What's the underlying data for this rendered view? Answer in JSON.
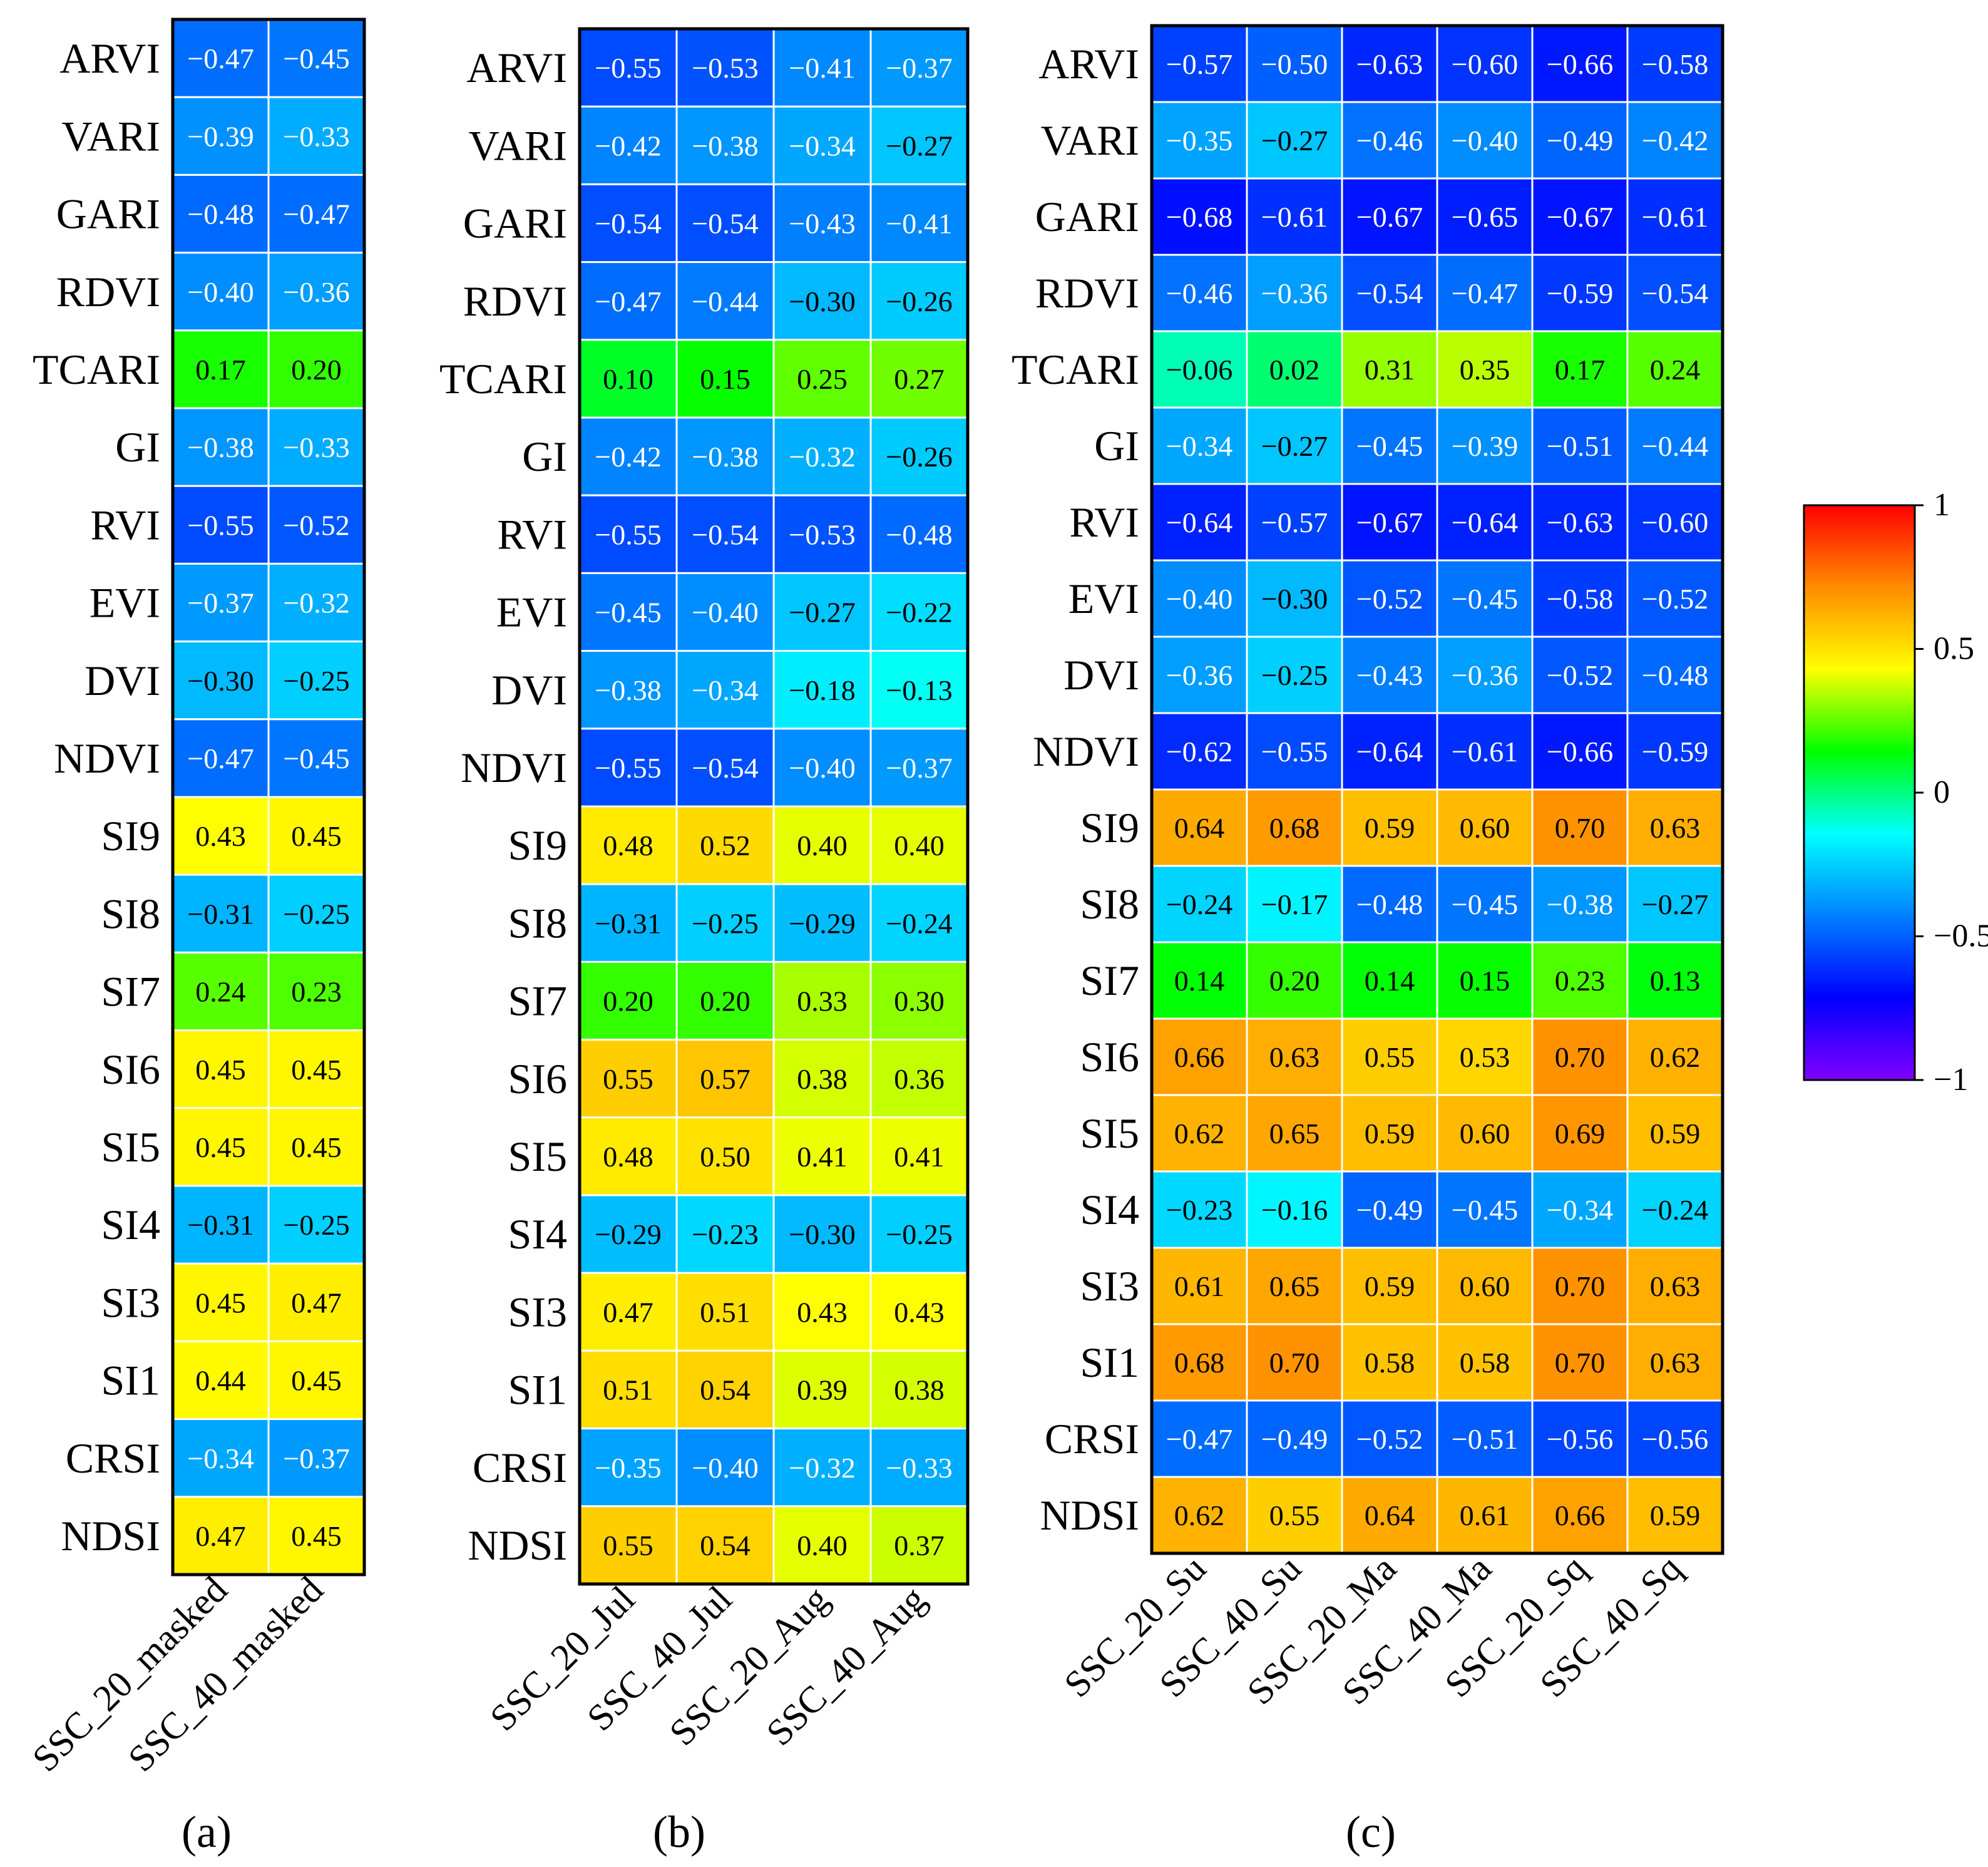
{
  "chart_data": [
    {
      "type": "heatmap",
      "panel_label": "(a)",
      "columns": [
        "SSC_20_masked",
        "SSC_40_masked"
      ],
      "rows": [
        "ARVI",
        "VARI",
        "GARI",
        "RDVI",
        "TCARI",
        "GI",
        "RVI",
        "EVI",
        "DVI",
        "NDVI",
        "SI9",
        "SI8",
        "SI7",
        "SI6",
        "SI5",
        "SI4",
        "SI3",
        "SI1",
        "CRSI",
        "NDSI"
      ],
      "values": [
        [
          -0.47,
          -0.45
        ],
        [
          -0.39,
          -0.33
        ],
        [
          -0.48,
          -0.47
        ],
        [
          -0.4,
          -0.36
        ],
        [
          0.17,
          0.2
        ],
        [
          -0.38,
          -0.33
        ],
        [
          -0.55,
          -0.52
        ],
        [
          -0.37,
          -0.32
        ],
        [
          -0.3,
          -0.25
        ],
        [
          -0.47,
          -0.45
        ],
        [
          0.43,
          0.45
        ],
        [
          -0.31,
          -0.25
        ],
        [
          0.24,
          0.23
        ],
        [
          0.45,
          0.45
        ],
        [
          0.45,
          0.45
        ],
        [
          -0.31,
          -0.25
        ],
        [
          0.45,
          0.47
        ],
        [
          0.44,
          0.45
        ],
        [
          -0.34,
          -0.37
        ],
        [
          0.47,
          0.45
        ]
      ]
    },
    {
      "type": "heatmap",
      "panel_label": "(b)",
      "columns": [
        "SSC_20_Jul",
        "SSC_40_Jul",
        "SSC_20_Aug",
        "SSC_40_Aug"
      ],
      "rows": [
        "ARVI",
        "VARI",
        "GARI",
        "RDVI",
        "TCARI",
        "GI",
        "RVI",
        "EVI",
        "DVI",
        "NDVI",
        "SI9",
        "SI8",
        "SI7",
        "SI6",
        "SI5",
        "SI4",
        "SI3",
        "SI1",
        "CRSI",
        "NDSI"
      ],
      "values": [
        [
          -0.55,
          -0.53,
          -0.41,
          -0.37
        ],
        [
          -0.42,
          -0.38,
          -0.34,
          -0.27
        ],
        [
          -0.54,
          -0.54,
          -0.43,
          -0.41
        ],
        [
          -0.47,
          -0.44,
          -0.3,
          -0.26
        ],
        [
          0.1,
          0.15,
          0.25,
          0.27
        ],
        [
          -0.42,
          -0.38,
          -0.32,
          -0.26
        ],
        [
          -0.55,
          -0.54,
          -0.53,
          -0.48
        ],
        [
          -0.45,
          -0.4,
          -0.27,
          -0.22
        ],
        [
          -0.38,
          -0.34,
          -0.18,
          -0.13
        ],
        [
          -0.55,
          -0.54,
          -0.4,
          -0.37
        ],
        [
          0.48,
          0.52,
          0.4,
          0.4
        ],
        [
          -0.31,
          -0.25,
          -0.29,
          -0.24
        ],
        [
          0.2,
          0.2,
          0.33,
          0.3
        ],
        [
          0.55,
          0.57,
          0.38,
          0.36
        ],
        [
          0.48,
          0.5,
          0.41,
          0.41
        ],
        [
          -0.29,
          -0.23,
          -0.3,
          -0.25
        ],
        [
          0.47,
          0.51,
          0.43,
          0.43
        ],
        [
          0.51,
          0.54,
          0.39,
          0.38
        ],
        [
          -0.35,
          -0.4,
          -0.32,
          -0.33
        ],
        [
          0.55,
          0.54,
          0.4,
          0.37
        ]
      ]
    },
    {
      "type": "heatmap",
      "panel_label": "(c)",
      "columns": [
        "SSC_20_Su",
        "SSC_40_Su",
        "SSC_20_Ma",
        "SSC_40_Ma",
        "SSC_20_Sq",
        "SSC_40_Sq"
      ],
      "rows": [
        "ARVI",
        "VARI",
        "GARI",
        "RDVI",
        "TCARI",
        "GI",
        "RVI",
        "EVI",
        "DVI",
        "NDVI",
        "SI9",
        "SI8",
        "SI7",
        "SI6",
        "SI5",
        "SI4",
        "SI3",
        "SI1",
        "CRSI",
        "NDSI"
      ],
      "values": [
        [
          -0.57,
          -0.5,
          -0.63,
          -0.6,
          -0.66,
          -0.58
        ],
        [
          -0.35,
          -0.27,
          -0.46,
          -0.4,
          -0.49,
          -0.42
        ],
        [
          -0.68,
          -0.61,
          -0.67,
          -0.65,
          -0.67,
          -0.61
        ],
        [
          -0.46,
          -0.36,
          -0.54,
          -0.47,
          -0.59,
          -0.54
        ],
        [
          -0.06,
          0.02,
          0.31,
          0.35,
          0.17,
          0.24
        ],
        [
          -0.34,
          -0.27,
          -0.45,
          -0.39,
          -0.51,
          -0.44
        ],
        [
          -0.64,
          -0.57,
          -0.67,
          -0.64,
          -0.63,
          -0.6
        ],
        [
          -0.4,
          -0.3,
          -0.52,
          -0.45,
          -0.58,
          -0.52
        ],
        [
          -0.36,
          -0.25,
          -0.43,
          -0.36,
          -0.52,
          -0.48
        ],
        [
          -0.62,
          -0.55,
          -0.64,
          -0.61,
          -0.66,
          -0.59
        ],
        [
          0.64,
          0.68,
          0.59,
          0.6,
          0.7,
          0.63
        ],
        [
          -0.24,
          -0.17,
          -0.48,
          -0.45,
          -0.38,
          -0.27
        ],
        [
          0.14,
          0.2,
          0.14,
          0.15,
          0.23,
          0.13
        ],
        [
          0.66,
          0.63,
          0.55,
          0.53,
          0.7,
          0.62
        ],
        [
          0.62,
          0.65,
          0.59,
          0.6,
          0.69,
          0.59
        ],
        [
          -0.23,
          -0.16,
          -0.49,
          -0.45,
          -0.34,
          -0.24
        ],
        [
          0.61,
          0.65,
          0.59,
          0.6,
          0.7,
          0.63
        ],
        [
          0.68,
          0.7,
          0.58,
          0.58,
          0.7,
          0.63
        ],
        [
          -0.47,
          -0.49,
          -0.52,
          -0.51,
          -0.56,
          -0.56
        ],
        [
          0.62,
          0.55,
          0.64,
          0.61,
          0.66,
          0.59
        ]
      ]
    }
  ],
  "colorbar": {
    "range": [
      -1,
      1
    ],
    "ticks": [
      1,
      0.5,
      0,
      -0.5,
      -1
    ],
    "tick_labels": [
      "1",
      "0.5",
      "0",
      "−0.5",
      "−1"
    ],
    "colors": [
      "#ff0000",
      "#ff8c00",
      "#ffff00",
      "#00ff00",
      "#00ffff",
      "#0080ff",
      "#0000ff",
      "#8000ff"
    ]
  }
}
